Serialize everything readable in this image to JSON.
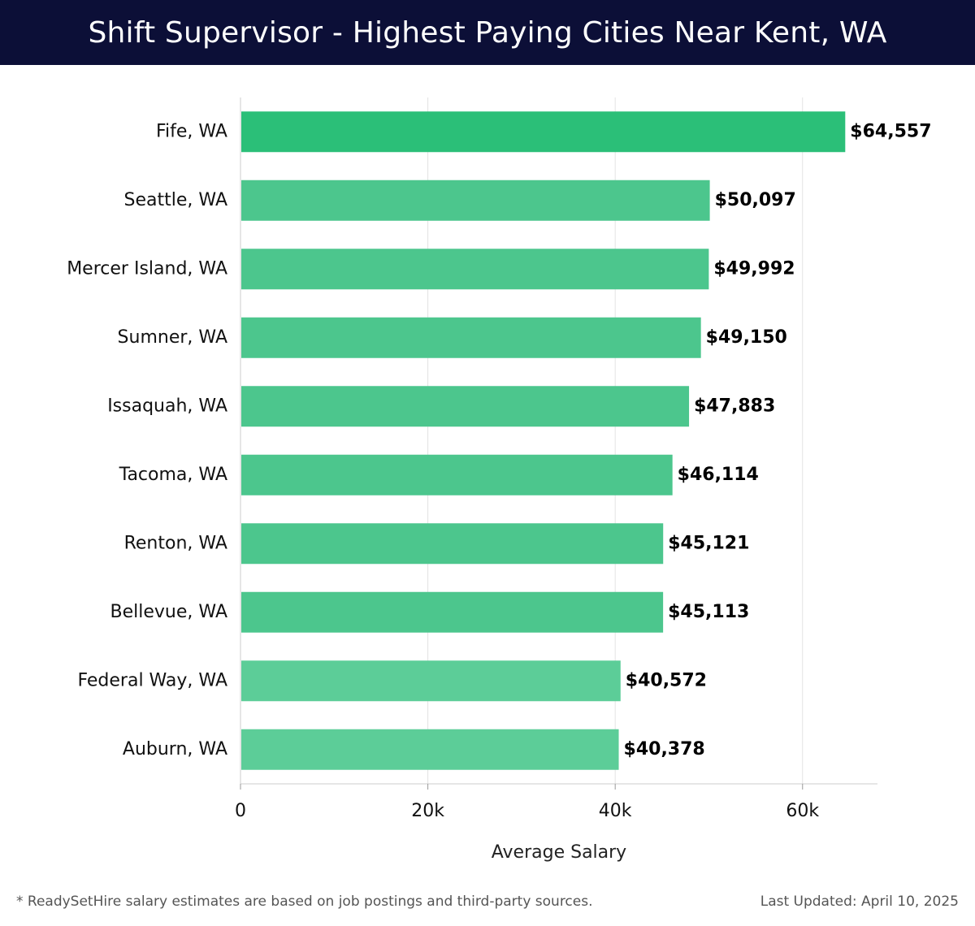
{
  "header": {
    "title": "Shift Supervisor - Highest Paying Cities Near Kent, WA"
  },
  "chart_data": {
    "type": "bar",
    "orientation": "horizontal",
    "title": "Shift Supervisor - Highest Paying Cities Near Kent, WA",
    "xlabel": "Average Salary",
    "ylabel": "",
    "xlim": [
      0,
      68000
    ],
    "x_ticks": [
      0,
      20000,
      40000,
      60000
    ],
    "x_tick_labels": [
      "0",
      "20k",
      "40k",
      "60k"
    ],
    "grid": true,
    "categories": [
      "Fife, WA",
      "Seattle, WA",
      "Mercer Island, WA",
      "Sumner, WA",
      "Issaquah, WA",
      "Tacoma, WA",
      "Renton, WA",
      "Bellevue, WA",
      "Federal Way, WA",
      "Auburn, WA"
    ],
    "values": [
      64557,
      50097,
      49992,
      49150,
      47883,
      46114,
      45121,
      45113,
      40572,
      40378
    ],
    "value_labels": [
      "$64,557",
      "$50,097",
      "$49,992",
      "$49,150",
      "$47,883",
      "$46,114",
      "$45,121",
      "$45,113",
      "$40,572",
      "$40,378"
    ],
    "colors": {
      "top_bar": "#2bbf78",
      "bar": "#4cc68d",
      "bar_light": "#5ccd98"
    }
  },
  "footer": {
    "note": "* ReadySetHire salary estimates are based on job postings and third-party sources.",
    "updated": "Last Updated: April 10, 2025"
  }
}
